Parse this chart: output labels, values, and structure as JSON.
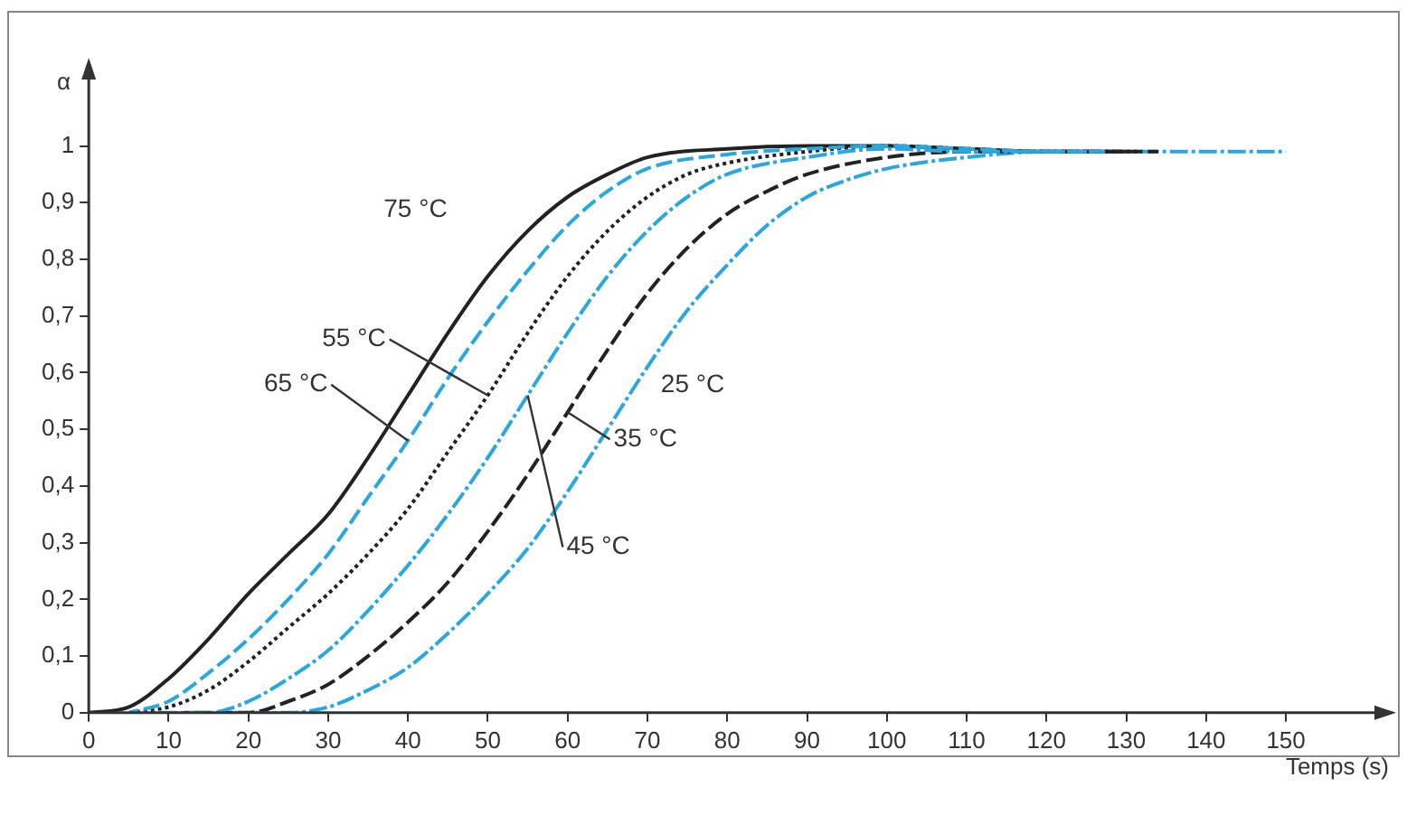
{
  "chart_data": {
    "type": "line",
    "xlabel": "Temps (s)",
    "ylabel": "α",
    "xlim": [
      0,
      162
    ],
    "ylim": [
      0,
      1.13
    ],
    "xticks": [
      0,
      10,
      20,
      30,
      40,
      50,
      60,
      70,
      80,
      90,
      100,
      110,
      120,
      130,
      140,
      150
    ],
    "yticks": [
      0,
      {
        "value": 0.1,
        "label": "0,1"
      },
      {
        "value": 0.2,
        "label": "0,2"
      },
      {
        "value": 0.3,
        "label": "0,3"
      },
      {
        "value": 0.4,
        "label": "0,4"
      },
      {
        "value": 0.5,
        "label": "0,5"
      },
      {
        "value": 0.6,
        "label": "0,6"
      },
      {
        "value": 0.7,
        "label": "0,7"
      },
      {
        "value": 0.8,
        "label": "0,8"
      },
      {
        "value": 0.9,
        "label": "0,9"
      },
      1
    ],
    "grid": false,
    "legend": false,
    "marker": "none",
    "series": [
      {
        "color": "#222222",
        "line_style": "solid",
        "x": [
          0,
          5,
          10,
          15,
          20,
          25,
          30,
          35,
          40,
          45,
          50,
          55,
          60,
          65,
          70,
          80,
          90,
          100,
          110,
          120,
          130
        ],
        "values": [
          0,
          0.01,
          0.06,
          0.13,
          0.21,
          0.28,
          0.35,
          0.45,
          0.56,
          0.67,
          0.77,
          0.85,
          0.91,
          0.95,
          0.98,
          0.995,
          1,
          1,
          0.995,
          0.99,
          0.99
        ]
      },
      {
        "color": "#29a8e0",
        "line_style": "dashed",
        "x": [
          5,
          10,
          15,
          20,
          25,
          30,
          35,
          40,
          45,
          50,
          55,
          60,
          65,
          70,
          80,
          90,
          100,
          110,
          120,
          128
        ],
        "values": [
          0,
          0.02,
          0.07,
          0.13,
          0.2,
          0.28,
          0.38,
          0.48,
          0.59,
          0.69,
          0.78,
          0.86,
          0.92,
          0.96,
          0.985,
          0.995,
          1,
          0.995,
          0.99,
          0.99
        ]
      },
      {
        "color": "#222222",
        "line_style": "dotted",
        "x": [
          5,
          10,
          15,
          20,
          25,
          30,
          35,
          40,
          45,
          50,
          55,
          60,
          65,
          70,
          75,
          80,
          90,
          100,
          110,
          120,
          132
        ],
        "values": [
          0,
          0.01,
          0.04,
          0.09,
          0.15,
          0.21,
          0.28,
          0.36,
          0.46,
          0.56,
          0.67,
          0.77,
          0.85,
          0.91,
          0.95,
          0.97,
          0.99,
          1,
          0.995,
          0.99,
          0.99
        ]
      },
      {
        "color": "#29a8e0",
        "line_style": "dashdot",
        "x": [
          8,
          15,
          20,
          25,
          30,
          35,
          40,
          45,
          50,
          55,
          60,
          65,
          70,
          75,
          80,
          90,
          100,
          110,
          120,
          126
        ],
        "values": [
          0,
          0,
          0.02,
          0.06,
          0.11,
          0.18,
          0.26,
          0.35,
          0.45,
          0.56,
          0.67,
          0.77,
          0.85,
          0.91,
          0.95,
          0.98,
          0.995,
          0.99,
          0.99,
          0.99
        ]
      },
      {
        "color": "#222222",
        "line_style": "dashed",
        "x": [
          12,
          20,
          25,
          30,
          35,
          40,
          45,
          50,
          55,
          60,
          65,
          70,
          75,
          80,
          85,
          90,
          100,
          110,
          120,
          134
        ],
        "values": [
          0,
          0,
          0.02,
          0.05,
          0.1,
          0.16,
          0.23,
          0.32,
          0.42,
          0.53,
          0.64,
          0.74,
          0.82,
          0.88,
          0.92,
          0.95,
          0.98,
          0.99,
          0.99,
          0.99
        ]
      },
      {
        "color": "#29a8e0",
        "line_style": "dashdot",
        "x": [
          18,
          25,
          30,
          35,
          40,
          45,
          50,
          55,
          60,
          65,
          70,
          75,
          80,
          85,
          90,
          95,
          100,
          110,
          120,
          130,
          150
        ],
        "values": [
          0,
          0,
          0.01,
          0.04,
          0.08,
          0.14,
          0.21,
          0.29,
          0.39,
          0.5,
          0.61,
          0.71,
          0.79,
          0.86,
          0.91,
          0.94,
          0.96,
          0.98,
          0.99,
          0.99,
          0.99
        ]
      }
    ],
    "annotations": [
      {
        "text": "75 °C",
        "x": 50,
        "y": 0.77
      },
      {
        "text": "55 °C",
        "x": 50,
        "y": 0.56
      },
      {
        "text": "65 °C",
        "x": 40,
        "y": 0.48
      },
      {
        "text": "35 °C",
        "x": 60,
        "y": 0.53
      },
      {
        "text": "45 °C",
        "x": 55,
        "y": 0.56
      },
      {
        "text": "25 °C",
        "x": 70,
        "y": 0.61
      }
    ]
  }
}
